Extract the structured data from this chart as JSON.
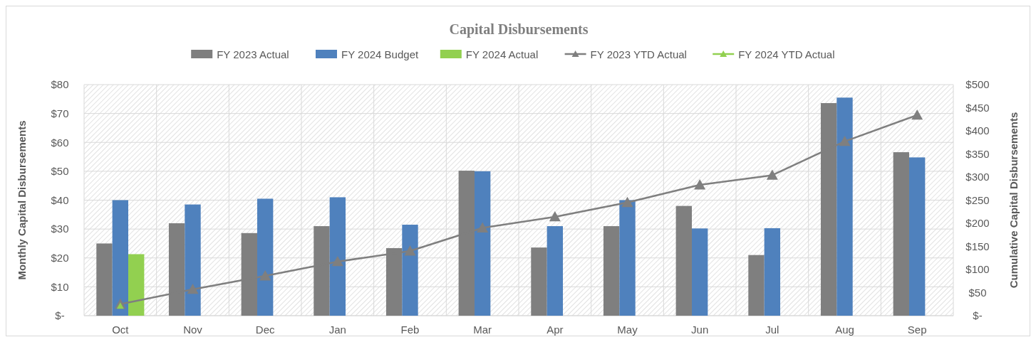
{
  "chart_data": {
    "type": "bar",
    "title": "Capital Disbursements",
    "ylabel": "Monthly Capital Disbursements",
    "y2label": "Cumulative Capital Disbursements",
    "categories": [
      "Oct",
      "Nov",
      "Dec",
      "Jan",
      "Feb",
      "Mar",
      "Apr",
      "May",
      "Jun",
      "Jul",
      "Aug",
      "Sep"
    ],
    "series": [
      {
        "name": "FY 2023 Actual",
        "color": "#7f7f7f",
        "values": [
          25,
          32,
          28.6,
          31,
          23.4,
          50.2,
          23.6,
          31,
          38,
          21,
          73.6,
          56.6
        ]
      },
      {
        "name": "FY 2024 Budget",
        "color": "#4f81bd",
        "values": [
          40,
          38.5,
          40.5,
          41,
          31.5,
          50,
          31,
          40,
          30.2,
          30.3,
          75.5,
          54.8
        ]
      },
      {
        "name": "FY 2024 Actual",
        "color": "#92d050",
        "values": [
          21.3,
          null,
          null,
          null,
          null,
          null,
          null,
          null,
          null,
          null,
          null,
          null
        ]
      },
      {
        "name": "FY 2023 YTD Actual",
        "type": "line",
        "axis": "y2",
        "marker": "triangle",
        "color": "#7f7f7f",
        "values": [
          25,
          57,
          86,
          117,
          140,
          190,
          214,
          245,
          283,
          304,
          377,
          434
        ]
      },
      {
        "name": "FY 2024 YTD Actual",
        "type": "line",
        "axis": "y2",
        "marker": "triangle",
        "color": "#92d050",
        "values": [
          21,
          null,
          null,
          null,
          null,
          null,
          null,
          null,
          null,
          null,
          null,
          null
        ]
      }
    ],
    "ylim": [
      0,
      80
    ],
    "yticks": [
      {
        "value": 0,
        "label": "$-"
      },
      {
        "value": 10,
        "label": "$10"
      },
      {
        "value": 20,
        "label": "$20"
      },
      {
        "value": 30,
        "label": "$30"
      },
      {
        "value": 40,
        "label": "$40"
      },
      {
        "value": 50,
        "label": "$50"
      },
      {
        "value": 60,
        "label": "$60"
      },
      {
        "value": 70,
        "label": "$70"
      },
      {
        "value": 80,
        "label": "$80"
      }
    ],
    "y2lim": [
      0,
      500
    ],
    "y2ticks": [
      {
        "value": 0,
        "label": "$-"
      },
      {
        "value": 50,
        "label": "$50"
      },
      {
        "value": 100,
        "label": "$100"
      },
      {
        "value": 150,
        "label": "$150"
      },
      {
        "value": 200,
        "label": "$200"
      },
      {
        "value": 250,
        "label": "$250"
      },
      {
        "value": 300,
        "label": "$300"
      },
      {
        "value": 350,
        "label": "$350"
      },
      {
        "value": 400,
        "label": "$400"
      },
      {
        "value": 450,
        "label": "$450"
      },
      {
        "value": 500,
        "label": "$500"
      }
    ],
    "grid": true,
    "legend": "top"
  }
}
